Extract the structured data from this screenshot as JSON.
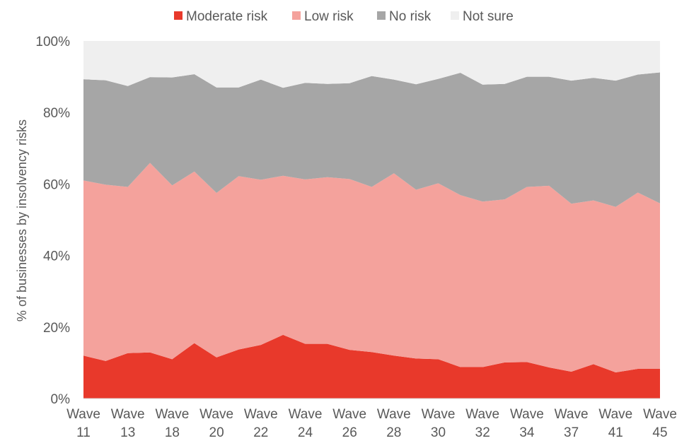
{
  "chart_data": {
    "type": "area",
    "stacked": true,
    "ylabel": "% of businesses by insolvency risks",
    "ylim": [
      0,
      100
    ],
    "yticks": [
      "0%",
      "20%",
      "40%",
      "60%",
      "80%",
      "100%"
    ],
    "xtick_labels": [
      {
        "line1": "Wave",
        "line2": "11"
      },
      {
        "line1": "Wave",
        "line2": "13"
      },
      {
        "line1": "Wave",
        "line2": "18"
      },
      {
        "line1": "Wave",
        "line2": "20"
      },
      {
        "line1": "Wave",
        "line2": "22"
      },
      {
        "line1": "Wave",
        "line2": "24"
      },
      {
        "line1": "Wave",
        "line2": "26"
      },
      {
        "line1": "Wave",
        "line2": "28"
      },
      {
        "line1": "Wave",
        "line2": "30"
      },
      {
        "line1": "Wave",
        "line2": "32"
      },
      {
        "line1": "Wave",
        "line2": "34"
      },
      {
        "line1": "Wave",
        "line2": "37"
      },
      {
        "line1": "Wave",
        "line2": "41"
      },
      {
        "line1": "Wave",
        "line2": "45"
      }
    ],
    "legend_position": "top",
    "series": [
      {
        "name": "Moderate risk",
        "color": "#e8392b",
        "values": [
          12,
          10.5,
          12.7,
          12.9,
          11,
          15.5,
          11.5,
          13.7,
          15,
          17.8,
          15.3,
          15.3,
          13.6,
          13,
          12,
          11.2,
          11,
          8.8,
          8.8,
          10.1,
          10.2,
          8.7,
          7.5,
          9.6,
          7.3,
          8.3,
          8.3
        ]
      },
      {
        "name": "Low risk",
        "color": "#f4a29c",
        "values": [
          49,
          49.3,
          46.5,
          53,
          48.6,
          48,
          46,
          48.5,
          46.2,
          44.5,
          46,
          46.6,
          47.8,
          46.2,
          51,
          47.2,
          49.2,
          48.1,
          46.3,
          45.6,
          49,
          50.8,
          47,
          45.8,
          46.3,
          49.3,
          46.3
        ]
      },
      {
        "name": "No risk",
        "color": "#a6a6a6",
        "values": [
          28.3,
          29.2,
          28.2,
          24,
          30.2,
          27.2,
          29.5,
          24.8,
          28,
          24.6,
          27,
          26.1,
          26.8,
          31,
          26.2,
          29.5,
          29.2,
          34.2,
          32.7,
          32.3,
          30.8,
          30.5,
          34.4,
          34.3,
          35.3,
          33,
          36.6
        ]
      },
      {
        "name": "Not sure",
        "color": "#efefef",
        "values": [
          10.7,
          11,
          12.6,
          10.1,
          10.2,
          9.3,
          13,
          13,
          10.8,
          13.1,
          11.7,
          12,
          11.8,
          9.8,
          10.8,
          12.1,
          10.6,
          8.9,
          12.2,
          12,
          10,
          10,
          11.1,
          10.3,
          11.1,
          9.4,
          8.8
        ]
      }
    ]
  }
}
